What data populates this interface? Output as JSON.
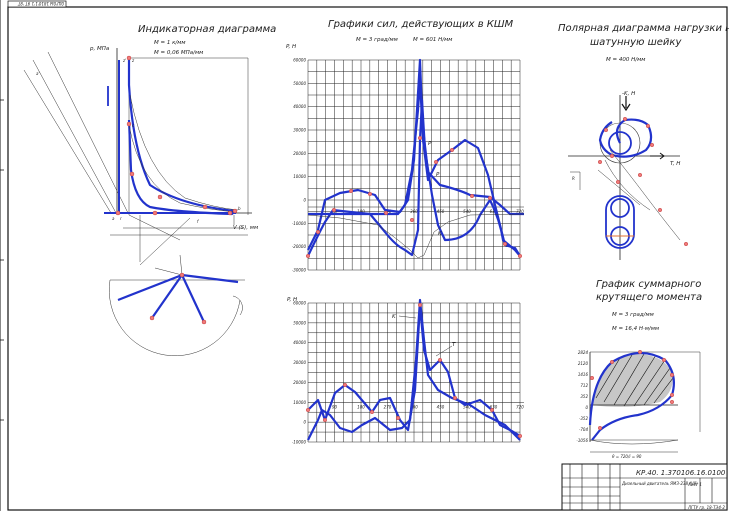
{
  "stamp_top": "0Ш'0Ы 1810'1'1 9Т '8Т",
  "indicator": {
    "title": "Индикаторная диаграмма",
    "param1": "M  = 1 к/мм",
    "param1_sub": "s",
    "param2": "M  = 0,06 MПа/мм",
    "param2_sub": "p",
    "p_axis": "p, MПа",
    "v_axis": "V (S), мм",
    "small_labels": [
      "a",
      "c",
      "z'",
      "z",
      "b",
      "r",
      "f",
      "a'"
    ]
  },
  "forces": {
    "title": "Графики сил, действующих в КШМ",
    "param1": "M  = 3 град/мм",
    "param1_sub": "φ",
    "param2": "M  = 601 H/мм",
    "param2_sub": "p",
    "y_label": "P, H",
    "ticks": [
      "60000",
      "50000",
      "40000",
      "30000",
      "20000",
      "10000",
      "0",
      "-10000",
      "-20000",
      "-30000"
    ],
    "x_ticks": [
      "90",
      "180",
      "270",
      "360",
      "450",
      "540",
      "630",
      "720"
    ],
    "curve_labels": [
      "P",
      "P",
      "K"
    ]
  },
  "tforce": {
    "y_label": "P, H",
    "ticks": [
      "60000",
      "50000",
      "40000",
      "30000",
      "20000",
      "10000",
      "0",
      "-10000"
    ],
    "x_ticks": [
      "90",
      "180",
      "270",
      "360",
      "450",
      "540",
      "630",
      "720"
    ],
    "curve_labels": [
      "K",
      "T"
    ]
  },
  "polar": {
    "title_line1": "Полярная диаграмма нагрузки на",
    "title_line2": "шатунную шейку",
    "param": "M  = 400 H/мм",
    "param_sub": "p",
    "k_axis": "-K, H",
    "t_axis": "T, H",
    "r_label": "R"
  },
  "torque": {
    "title_line1": "График суммарного",
    "title_line2": "крутящего момента",
    "param1": "M  = 3 град/мм",
    "param1_sub": "φ",
    "param2": "M  = 16,4 H·м/мм",
    "param2_sub": "m",
    "bottom_label": "θ = 720/i = 90",
    "ticks": [
      "2824",
      "2120",
      "1416",
      "712",
      "352",
      "0",
      "-352",
      "-704",
      "-1056"
    ]
  },
  "titleblock": {
    "code": "КР.40. 1.370106.16.0100",
    "name": "Дизельный двигатель ЯМЗ-238 (V8)",
    "sheet_title": "Лист 1",
    "org": "ЛГТУ гр. 18-ТЭ4-2"
  }
}
